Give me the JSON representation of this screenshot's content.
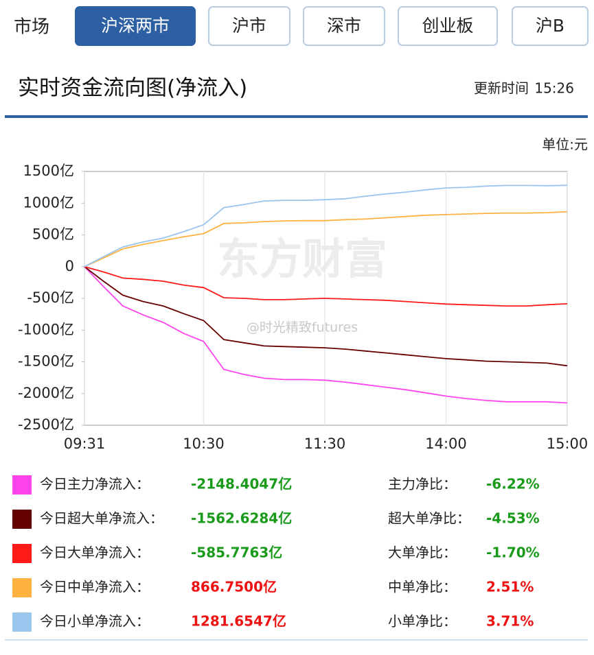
{
  "tabs": {
    "label": "市场",
    "items": [
      "沪深两市",
      "沪市",
      "深市",
      "创业板",
      "沪B"
    ],
    "active": 0
  },
  "header": {
    "title": "实时资金流向图(净流入)",
    "update_label": "更新时间",
    "update_time": "15:26"
  },
  "unit": "单位:元",
  "chart_data": {
    "type": "line",
    "x": [
      "09:31",
      "09:40",
      "09:50",
      "10:00",
      "10:10",
      "10:20",
      "10:30",
      "10:40",
      "10:50",
      "11:00",
      "11:10",
      "11:20",
      "11:30",
      "13:10",
      "13:20",
      "13:30",
      "13:40",
      "13:50",
      "14:00",
      "14:10",
      "14:20",
      "14:30",
      "14:40",
      "14:50",
      "15:00"
    ],
    "xlim": [
      "09:31",
      "15:00"
    ],
    "xticks": [
      "09:31",
      "10:30",
      "11:30",
      "14:00",
      "15:00"
    ],
    "ylim": [
      -2500,
      1500
    ],
    "yticks": [
      {
        "value": 1500,
        "label": "1500亿"
      },
      {
        "value": 1000,
        "label": "1000亿"
      },
      {
        "value": 500,
        "label": "500亿"
      },
      0,
      {
        "value": -500,
        "label": "-500亿"
      },
      {
        "value": -1000,
        "label": "-1000亿"
      },
      {
        "value": -1500,
        "label": "-1500亿"
      },
      {
        "value": -2000,
        "label": "-2000亿"
      },
      {
        "value": -2500,
        "label": "-2500亿"
      }
    ],
    "grid": "x",
    "watermarks": [
      "东方财富",
      "@时光精致futures"
    ],
    "series": [
      {
        "name": "今日主力净流入：",
        "color": "#ff44ee",
        "values": [
          0,
          -300,
          -620,
          -760,
          -880,
          -1050,
          -1180,
          -1620,
          -1700,
          -1760,
          -1780,
          -1780,
          -1790,
          -1820,
          -1860,
          -1900,
          -1940,
          -1990,
          -2040,
          -2080,
          -2110,
          -2130,
          -2130,
          -2130,
          -2148.4047
        ],
        "net": -2148.4047,
        "net_label": "-2148.4047亿",
        "ratio_name": "主力净比：",
        "ratio": -6.22,
        "ratio_label": "-6.22%"
      },
      {
        "name": "今日超大单净流入：",
        "color": "#660000",
        "values": [
          0,
          -220,
          -450,
          -550,
          -620,
          -740,
          -850,
          -1150,
          -1200,
          -1250,
          -1260,
          -1270,
          -1280,
          -1300,
          -1330,
          -1360,
          -1390,
          -1420,
          -1450,
          -1470,
          -1490,
          -1500,
          -1510,
          -1520,
          -1562.6284
        ],
        "net": -1562.6284,
        "net_label": "-1562.6284亿",
        "ratio_name": "超大单净比：",
        "ratio": -4.53,
        "ratio_label": "-4.53%"
      },
      {
        "name": "今日大单净流入：",
        "color": "#ff1a1a",
        "values": [
          0,
          -80,
          -180,
          -200,
          -230,
          -290,
          -330,
          -490,
          -500,
          -520,
          -520,
          -510,
          -500,
          -510,
          -520,
          -530,
          -550,
          -570,
          -590,
          -600,
          -610,
          -620,
          -620,
          -600,
          -585.7763
        ],
        "net": -585.7763,
        "net_label": "-585.7763亿",
        "ratio_name": "大单净比：",
        "ratio": -1.7,
        "ratio_label": "-1.70%"
      },
      {
        "name": "今日中单净流入：",
        "color": "#ffb23f",
        "values": [
          0,
          130,
          280,
          350,
          410,
          470,
          520,
          680,
          690,
          710,
          720,
          725,
          725,
          740,
          750,
          770,
          790,
          810,
          820,
          830,
          840,
          845,
          845,
          850,
          866.75
        ],
        "net": 866.75,
        "net_label": "866.7500亿",
        "ratio_name": "中单净比：",
        "ratio": 2.51,
        "ratio_label": "2.51%"
      },
      {
        "name": "今日小单净流入：",
        "color": "#99c5ee",
        "values": [
          0,
          150,
          310,
          390,
          450,
          550,
          660,
          930,
          980,
          1035,
          1045,
          1045,
          1055,
          1070,
          1110,
          1145,
          1175,
          1210,
          1240,
          1250,
          1270,
          1280,
          1280,
          1275,
          1281.6547
        ],
        "net": 1281.6547,
        "net_label": "1281.6547亿",
        "ratio_name": "小单净比：",
        "ratio": 3.71,
        "ratio_label": "3.71%"
      }
    ]
  }
}
